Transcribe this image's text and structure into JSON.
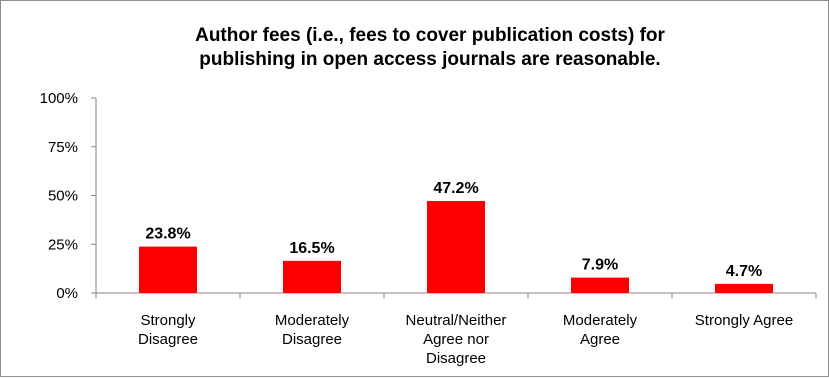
{
  "chart_data": {
    "type": "bar",
    "title_lines": [
      "Author fees (i.e., fees to cover publication costs) for",
      "publishing in open access journals are reasonable."
    ],
    "categories": [
      [
        "Strongly",
        "Disagree"
      ],
      [
        "Moderately",
        "Disagree"
      ],
      [
        "Neutral/Neither",
        "Agree nor",
        "Disagree"
      ],
      [
        "Moderately",
        "Agree"
      ],
      [
        "Strongly Agree"
      ]
    ],
    "values": [
      23.8,
      16.5,
      47.2,
      7.9,
      4.7
    ],
    "data_labels": [
      "23.8%",
      "16.5%",
      "47.2%",
      "7.9%",
      "4.7%"
    ],
    "yticks": [
      "0%",
      "25%",
      "50%",
      "75%",
      "100%"
    ],
    "ylim": [
      0,
      100
    ],
    "bar_color": "#ff0000",
    "grid": false,
    "legend": "none"
  }
}
